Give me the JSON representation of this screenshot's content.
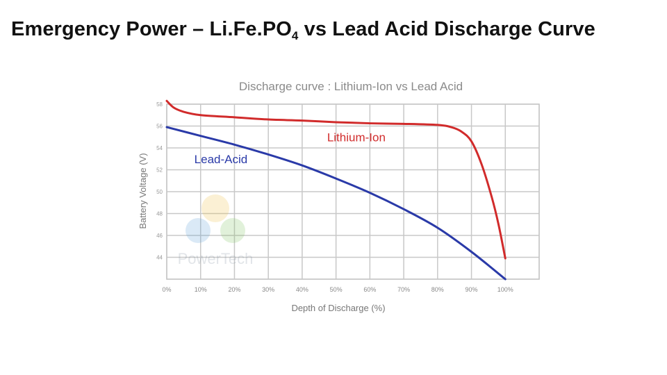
{
  "slide": {
    "title_part1": "Emergency Power – Li.Fe.PO",
    "title_sub": "4",
    "title_part2": " vs Lead Acid Discharge Curve"
  },
  "watermark": {
    "name": "PowerTech",
    "icon": "powertech-logo-icon"
  },
  "chart_data": {
    "type": "line",
    "title": "Discharge curve : Lithium-Ion vs Lead Acid",
    "xlabel": "Depth of Discharge (%)",
    "ylabel": "Battery Voltage (V)",
    "xlim": [
      0,
      110
    ],
    "ylim": [
      42,
      58
    ],
    "x_ticks": [
      0,
      10,
      20,
      30,
      40,
      50,
      60,
      70,
      80,
      90,
      100
    ],
    "x_tick_labels": [
      "0%",
      "10%",
      "20%",
      "30%",
      "40%",
      "50%",
      "60%",
      "70%",
      "80%",
      "90%",
      "100%"
    ],
    "y_ticks": [
      44,
      46,
      48,
      50,
      52,
      54,
      56,
      58
    ],
    "y_tick_labels": [
      "44",
      "46",
      "48",
      "50",
      "52",
      "54",
      "56",
      "58"
    ],
    "grid": true,
    "series": [
      {
        "name": "Lithium-Ion",
        "color": "#d12b2b",
        "x": [
          0,
          2,
          5,
          10,
          20,
          30,
          40,
          50,
          60,
          70,
          80,
          84,
          87,
          90,
          93,
          96,
          98,
          100
        ],
        "values": [
          58.3,
          57.7,
          57.3,
          57.0,
          56.8,
          56.6,
          56.5,
          56.35,
          56.25,
          56.2,
          56.1,
          55.9,
          55.5,
          54.6,
          52.5,
          49.5,
          47.0,
          43.9
        ]
      },
      {
        "name": "Lead-Acid",
        "color": "#2a3aa8",
        "x": [
          0,
          10,
          20,
          30,
          40,
          50,
          60,
          70,
          80,
          90,
          100
        ],
        "values": [
          55.9,
          55.1,
          54.3,
          53.4,
          52.4,
          51.2,
          49.9,
          48.4,
          46.7,
          44.5,
          42.0
        ]
      }
    ]
  }
}
